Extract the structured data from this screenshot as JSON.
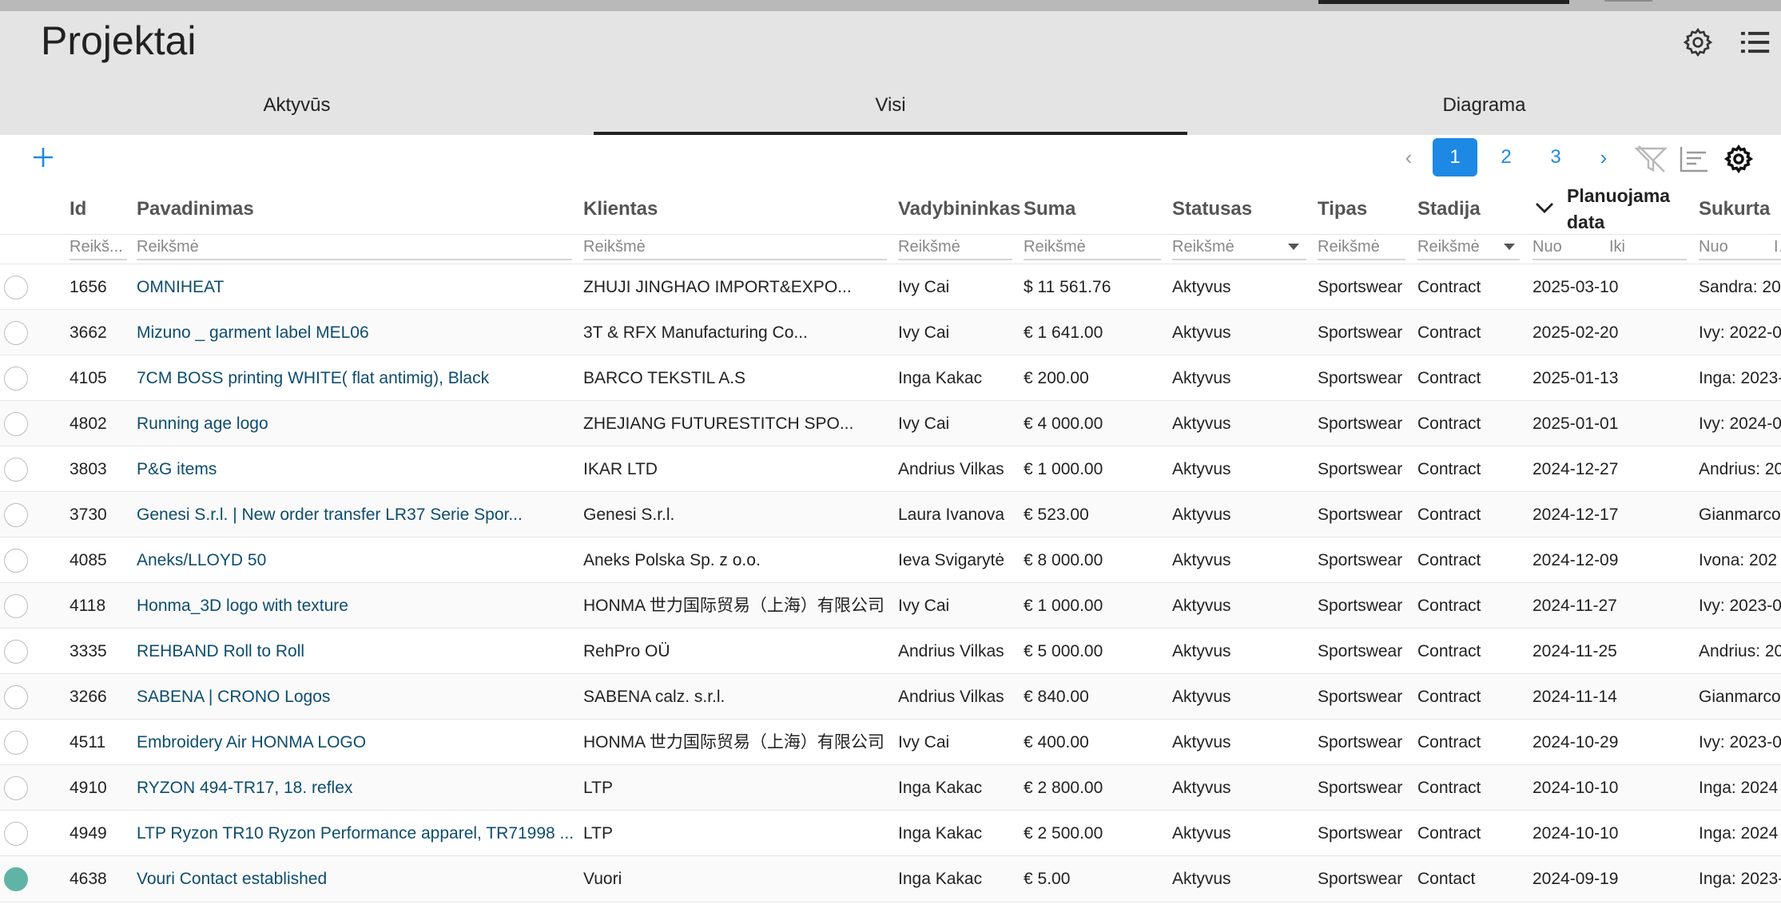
{
  "page": {
    "title": "Projektai"
  },
  "tabs": [
    {
      "label": "Aktyvūs"
    },
    {
      "label": "Visi"
    },
    {
      "label": "Diagrama"
    }
  ],
  "pagination": {
    "pages": [
      "1",
      "2",
      "3"
    ],
    "current": "1",
    "prev": "‹",
    "next": "›"
  },
  "columns": {
    "id": "Id",
    "name": "Pavadinimas",
    "client": "Klientas",
    "manager": "Vadybininkas",
    "sum": "Suma",
    "status": "Statusas",
    "type": "Tipas",
    "stage": "Stadija",
    "planned": "Planuojama data",
    "created": "Sukurta"
  },
  "filters": {
    "placeholder": "Reikšmė",
    "id_placeholder": "Reikš...",
    "from": "Nuo",
    "to": "Iki"
  },
  "rows": [
    {
      "id": "1656",
      "name": "OMNIHEAT",
      "client": "ZHUJI JINGHAO IMPORT&EXPO...",
      "manager": "Ivy Cai",
      "sum": "$ 11 561.76",
      "status": "Aktyvus",
      "type": "Sportswear",
      "stage": "Contract",
      "planned": "2025-03-10",
      "created": "Sandra: 20",
      "selected": false
    },
    {
      "id": "3662",
      "name": "Mizuno _ garment label MEL06",
      "client": "3T & RFX Manufacturing Co...",
      "manager": "Ivy Cai",
      "sum": "€ 1 641.00",
      "status": "Aktyvus",
      "type": "Sportswear",
      "stage": "Contract",
      "planned": "2025-02-20",
      "created": "Ivy: 2022-0",
      "selected": false
    },
    {
      "id": "4105",
      "name": "7CM BOSS printing WHITE( flat antimig), Black",
      "client": "BARCO TEKSTIL A.S",
      "manager": "Inga Kakac",
      "sum": "€ 200.00",
      "status": "Aktyvus",
      "type": "Sportswear",
      "stage": "Contract",
      "planned": "2025-01-13",
      "created": "Inga: 2023-",
      "selected": false
    },
    {
      "id": "4802",
      "name": "Running age logo",
      "client": "ZHEJIANG FUTURESTITCH SPO...",
      "manager": "Ivy Cai",
      "sum": "€ 4 000.00",
      "status": "Aktyvus",
      "type": "Sportswear",
      "stage": "Contract",
      "planned": "2025-01-01",
      "created": "Ivy: 2024-0",
      "selected": false
    },
    {
      "id": "3803",
      "name": "P&G items",
      "client": "IKAR LTD",
      "manager": "Andrius Vilkas",
      "sum": "€ 1 000.00",
      "status": "Aktyvus",
      "type": "Sportswear",
      "stage": "Contract",
      "planned": "2024-12-27",
      "created": "Andrius: 20",
      "selected": false
    },
    {
      "id": "3730",
      "name": "Genesi S.r.l. | New order transfer LR37 Serie Spor...",
      "client": "Genesi S.r.l.",
      "manager": "Laura Ivanova",
      "sum": "€ 523.00",
      "status": "Aktyvus",
      "type": "Sportswear",
      "stage": "Contract",
      "planned": "2024-12-17",
      "created": "Gianmarco",
      "selected": false
    },
    {
      "id": "4085",
      "name": "Aneks/LLOYD 50",
      "client": "Aneks Polska Sp. z o.o.",
      "manager": "Ieva Svigarytė",
      "sum": "€ 8 000.00",
      "status": "Aktyvus",
      "type": "Sportswear",
      "stage": "Contract",
      "planned": "2024-12-09",
      "created": "Ivona: 202",
      "selected": false
    },
    {
      "id": "4118",
      "name": "Honma_3D logo with texture",
      "client": "HONMA 世力国际贸易（上海）有限公司",
      "manager": "Ivy Cai",
      "sum": "€ 1 000.00",
      "status": "Aktyvus",
      "type": "Sportswear",
      "stage": "Contract",
      "planned": "2024-11-27",
      "created": "Ivy: 2023-0",
      "selected": false
    },
    {
      "id": "3335",
      "name": "REHBAND Roll to Roll",
      "client": "RehPro OÜ",
      "manager": "Andrius Vilkas",
      "sum": "€ 5 000.00",
      "status": "Aktyvus",
      "type": "Sportswear",
      "stage": "Contract",
      "planned": "2024-11-25",
      "created": "Andrius: 20",
      "selected": false
    },
    {
      "id": "3266",
      "name": "SABENA | CRONO Logos",
      "client": "SABENA calz. s.r.l.",
      "manager": "Andrius Vilkas",
      "sum": "€ 840.00",
      "status": "Aktyvus",
      "type": "Sportswear",
      "stage": "Contract",
      "planned": "2024-11-14",
      "created": "Gianmarco",
      "selected": false
    },
    {
      "id": "4511",
      "name": "Embroidery Air HONMA LOGO",
      "client": "HONMA 世力国际贸易（上海）有限公司",
      "manager": "Ivy Cai",
      "sum": "€ 400.00",
      "status": "Aktyvus",
      "type": "Sportswear",
      "stage": "Contract",
      "planned": "2024-10-29",
      "created": "Ivy: 2023-0",
      "selected": false
    },
    {
      "id": "4910",
      "name": "RYZON 494-TR17, 18. reflex",
      "client": "LTP",
      "manager": "Inga Kakac",
      "sum": "€ 2 800.00",
      "status": "Aktyvus",
      "type": "Sportswear",
      "stage": "Contract",
      "planned": "2024-10-10",
      "created": "Inga: 2024",
      "selected": false
    },
    {
      "id": "4949",
      "name": "LTP Ryzon TR10 Ryzon Performance apparel, TR71998 ...",
      "client": "LTP",
      "manager": "Inga Kakac",
      "sum": "€ 2 500.00",
      "status": "Aktyvus",
      "type": "Sportswear",
      "stage": "Contract",
      "planned": "2024-10-10",
      "created": "Inga: 2024",
      "selected": false
    },
    {
      "id": "4638",
      "name": "Vouri Contact established",
      "client": "Vuori",
      "manager": "Inga Kakac",
      "sum": "€ 5.00",
      "status": "Aktyvus",
      "type": "Sportswear",
      "stage": "Contact",
      "planned": "2024-09-19",
      "created": "Inga: 2023-",
      "selected": true
    }
  ]
}
